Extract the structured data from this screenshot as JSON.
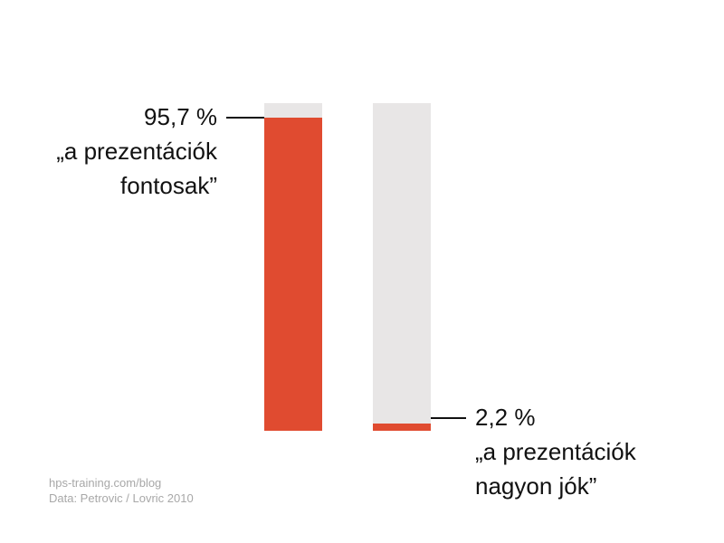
{
  "chart_data": {
    "type": "bar",
    "categories": [
      "„a prezentációk\nfontosak”",
      "„a prezentációk\nnagyon jók”"
    ],
    "values": [
      95.7,
      2.2
    ],
    "value_labels": [
      "95,7 %",
      "2,2 %"
    ],
    "color": "#e04b30",
    "track_color": "#e8e6e6",
    "ylim": [
      0,
      100
    ],
    "source": [
      "hps-training.com/blog",
      "Data: Petrovic / Lovric 2010"
    ]
  }
}
